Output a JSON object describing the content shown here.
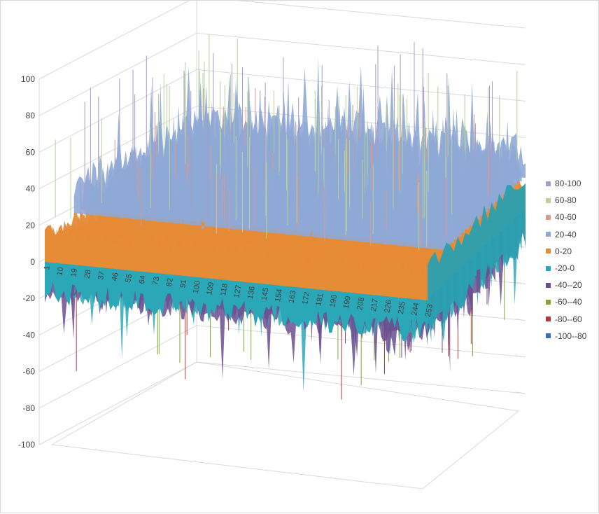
{
  "chart_data": {
    "type": "surface",
    "title": "",
    "z_axis": {
      "range": [
        -100,
        100
      ],
      "major_unit": 20,
      "tick_labels": [
        "-100",
        "-80",
        "-60",
        "-40",
        "-20",
        "0",
        "20",
        "40",
        "60",
        "80",
        "100"
      ]
    },
    "x_axis": {
      "categories_count": 253,
      "tick_labels": [
        "1",
        "10",
        "19",
        "28",
        "37",
        "46",
        "55",
        "64",
        "73",
        "82",
        "91",
        "100",
        "109",
        "118",
        "127",
        "136",
        "145",
        "154",
        "163",
        "172",
        "181",
        "190",
        "199",
        "208",
        "217",
        "226",
        "235",
        "244",
        "253"
      ]
    },
    "gridlines": true,
    "legend": {
      "position": "right",
      "items": [
        {
          "label": "80-100",
          "color": "#a99ac9"
        },
        {
          "label": "60-80",
          "color": "#b5d29a"
        },
        {
          "label": "40-60",
          "color": "#d8998f"
        },
        {
          "label": "20-40",
          "color": "#8fa8d6"
        },
        {
          "label": "0-20",
          "color": "#e68b36"
        },
        {
          "label": "-20-0",
          "color": "#2ba8b8"
        },
        {
          "label": "-40--20",
          "color": "#6b4e8f"
        },
        {
          "label": "-60--40",
          "color": "#7fa83a"
        },
        {
          "label": "-80--60",
          "color": "#b33a3a"
        },
        {
          "label": "-100--80",
          "color": "#3a6fb8"
        }
      ]
    },
    "surface_description_values": {
      "baseline_band": "0-20",
      "typical_range": [
        -40,
        60
      ],
      "max_spike_approx": 92,
      "min_spike_approx": -68
    }
  }
}
